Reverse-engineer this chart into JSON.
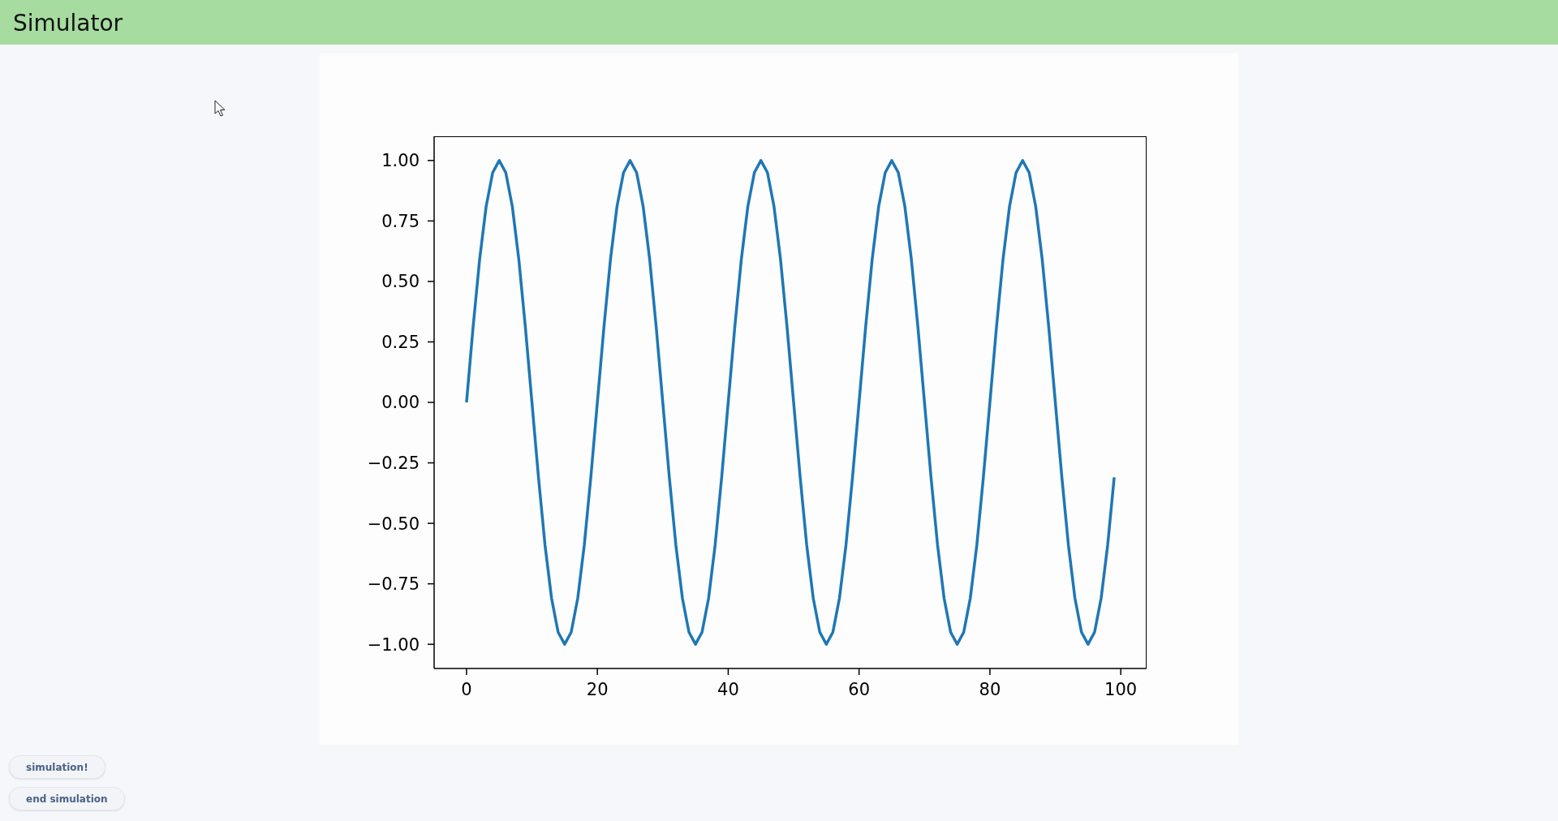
{
  "chart_data": {
    "type": "line",
    "title": "Simulator",
    "annotations": [
      "simulation!",
      "end simulation"
    ],
    "x": [
      0,
      1,
      2,
      3,
      4,
      5,
      6,
      7,
      8,
      9,
      10,
      11,
      12,
      13,
      14,
      15,
      16,
      17,
      18,
      19,
      20,
      21,
      22,
      23,
      24,
      25,
      26,
      27,
      28,
      29,
      30,
      31,
      32,
      33,
      34,
      35,
      36,
      37,
      38,
      39,
      40,
      41,
      42,
      43,
      44,
      45,
      46,
      47,
      48,
      49,
      50,
      51,
      52,
      53,
      54,
      55,
      56,
      57,
      58,
      59,
      60,
      61,
      62,
      63,
      64,
      65,
      66,
      67,
      68,
      69,
      70,
      71,
      72,
      73,
      74,
      75,
      76,
      77,
      78,
      79,
      80,
      81,
      82,
      83,
      84,
      85,
      86,
      87,
      88,
      89,
      90,
      91,
      92,
      93,
      94,
      95,
      96,
      97,
      98,
      99
    ],
    "values": [
      0.0,
      0.31,
      0.59,
      0.81,
      0.95,
      1.0,
      0.95,
      0.81,
      0.59,
      0.31,
      0.0,
      -0.31,
      -0.59,
      -0.81,
      -0.95,
      -1.0,
      -0.95,
      -0.81,
      -0.59,
      -0.31,
      0.0,
      0.31,
      0.59,
      0.81,
      0.95,
      1.0,
      0.95,
      0.81,
      0.59,
      0.31,
      0.0,
      -0.31,
      -0.59,
      -0.81,
      -0.95,
      -1.0,
      -0.95,
      -0.81,
      -0.59,
      -0.31,
      0.0,
      0.31,
      0.59,
      0.81,
      0.95,
      1.0,
      0.95,
      0.81,
      0.59,
      0.31,
      0.0,
      -0.31,
      -0.59,
      -0.81,
      -0.95,
      -1.0,
      -0.95,
      -0.81,
      -0.59,
      -0.31,
      0.0,
      0.31,
      0.59,
      0.81,
      0.95,
      1.0,
      0.95,
      0.81,
      0.59,
      0.31,
      0.0,
      -0.31,
      -0.59,
      -0.81,
      -0.95,
      -1.0,
      -0.95,
      -0.81,
      -0.59,
      -0.31,
      0.0,
      0.31,
      0.59,
      0.81,
      0.95,
      1.0,
      0.95,
      0.81,
      0.59,
      0.31,
      0.0,
      -0.31,
      -0.59,
      -0.81,
      -0.95,
      -1.0,
      -0.95,
      -0.81,
      -0.59,
      -0.31
    ],
    "color": "#1f77b4",
    "xlim": [
      -4.95,
      103.95
    ],
    "xticks": [
      0,
      20,
      40,
      60,
      80,
      100
    ],
    "ylim": [
      -1.1,
      1.1
    ],
    "yticks": [
      {
        "value": -1,
        "label": "−1.00"
      },
      {
        "value": -0.75,
        "label": "−0.75"
      },
      {
        "value": -0.5,
        "label": "−0.50"
      },
      {
        "value": -0.25,
        "label": "−0.25"
      },
      {
        "value": 0,
        "label": "0.00"
      },
      {
        "value": 0.25,
        "label": "0.25"
      },
      {
        "value": 0.5,
        "label": "0.50"
      },
      {
        "value": 0.75,
        "label": "0.75"
      },
      {
        "value": 1,
        "label": "1.00"
      }
    ]
  }
}
